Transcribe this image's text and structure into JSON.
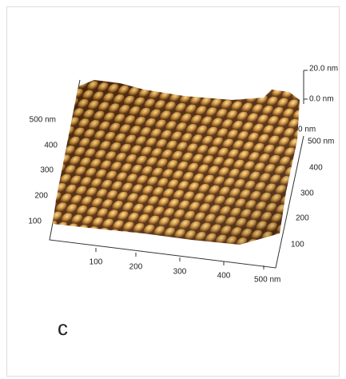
{
  "scale_bar": {
    "top": "20.0 nm",
    "bottom": "0.0 nm"
  },
  "left_axis": {
    "labels": [
      "500 nm",
      "400",
      "300",
      "200",
      "100"
    ]
  },
  "front_axis": {
    "labels": [
      "100",
      "200",
      "300",
      "400",
      "500 nm"
    ]
  },
  "right_axis": {
    "labels": [
      "0 nm",
      "500 nm",
      "400",
      "300",
      "200",
      "100"
    ]
  },
  "panel_label": "c"
}
